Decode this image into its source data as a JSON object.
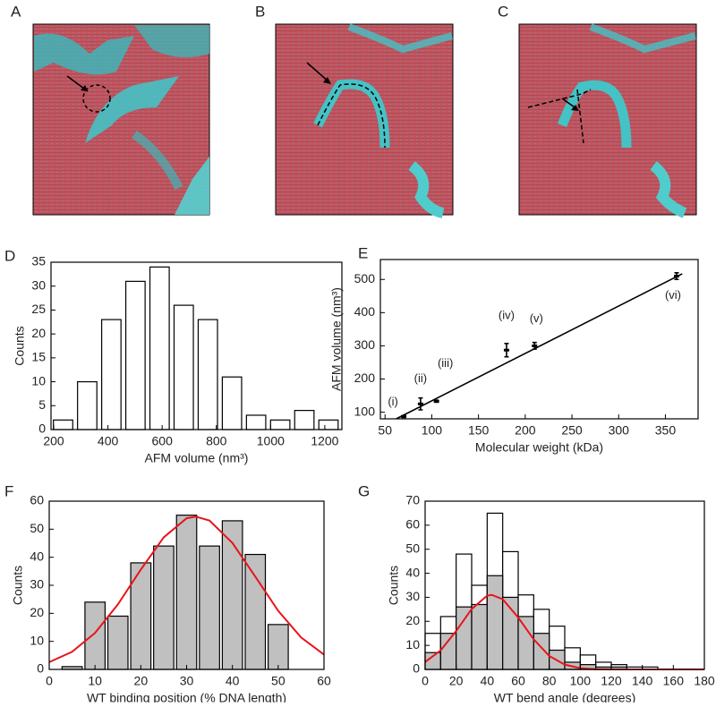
{
  "images": [
    {
      "label": "A"
    },
    {
      "label": "B"
    },
    {
      "label": "C"
    }
  ],
  "chart_data": [
    {
      "type": "histogram",
      "label": "D",
      "xlabel": "AFM volume (nm³)",
      "ylabel": "Counts",
      "bins": [
        190,
        279,
        368,
        457,
        546,
        635,
        724,
        813,
        902,
        991,
        1080,
        1169,
        1258
      ],
      "series": [
        {
          "color": "#ffffff",
          "values": [
            2,
            10,
            23,
            31,
            34,
            26,
            23,
            11,
            3,
            2,
            4,
            2
          ]
        }
      ],
      "xlim": [
        190,
        1263
      ],
      "xticks": [
        200,
        400,
        600,
        800,
        1000,
        1200
      ],
      "ylim": [
        0,
        35
      ],
      "yticks": [
        0,
        5,
        10,
        15,
        20,
        25,
        30,
        35
      ]
    },
    {
      "type": "scatter",
      "label": "E",
      "xlabel": "Molecular weight (kDa)",
      "ylabel": "AFM volume (nm³)",
      "x": [
        70,
        88,
        105,
        180,
        210,
        362
      ],
      "values": [
        87,
        125,
        133,
        287,
        300,
        510
      ],
      "errors": [
        3,
        18,
        3,
        20,
        10,
        10
      ],
      "point_labels": [
        "(i)",
        "(ii)",
        "(iii)",
        "(iv)",
        "(v)",
        "(vi)"
      ],
      "color": "#000000",
      "fit": {
        "x": [
          62,
          368
        ],
        "y": [
          80,
          517
        ],
        "color": "#000000"
      },
      "xlim": [
        45,
        385
      ],
      "xticks": [
        50,
        100,
        150,
        200,
        250,
        300,
        350
      ],
      "ylim": [
        80,
        560
      ],
      "yticks": [
        100,
        200,
        300,
        400,
        500
      ]
    },
    {
      "type": "histogram",
      "label": "F",
      "xlabel": "WT binding position (% DNA length)",
      "ylabel": "Counts",
      "bins": [
        2.5,
        7.5,
        12.5,
        17.5,
        22.5,
        27.5,
        32.5,
        37.5,
        42.5,
        47.5,
        52.5
      ],
      "series": [
        {
          "color": "#c0c0c0",
          "values": [
            1,
            24,
            19,
            38,
            44,
            55,
            44,
            53,
            41,
            16
          ]
        }
      ],
      "fit": {
        "color": "#e8141b",
        "x": [
          0,
          5,
          10,
          15,
          20,
          25,
          30,
          32,
          35,
          40,
          45,
          50,
          55,
          60
        ],
        "y": [
          2.6,
          6.3,
          13.0,
          23.2,
          35.6,
          47.1,
          53.9,
          54.5,
          53.1,
          45.1,
          33.1,
          20.9,
          11.4,
          5.3
        ]
      },
      "xlim": [
        0,
        60
      ],
      "xticks": [
        0,
        10,
        20,
        30,
        40,
        50,
        60
      ],
      "ylim": [
        0,
        60
      ],
      "yticks": [
        0,
        10,
        20,
        30,
        40,
        50,
        60
      ]
    },
    {
      "type": "histogram",
      "label": "G",
      "xlabel": "WT bend angle (degrees)",
      "ylabel": "Counts",
      "bins": [
        0,
        10,
        20,
        30,
        40,
        50,
        60,
        70,
        80,
        90,
        100,
        110,
        120,
        130,
        140,
        150
      ],
      "series": [
        {
          "color": "#ffffff",
          "values": [
            15,
            22,
            48,
            35,
            65,
            49,
            31,
            25,
            18,
            9,
            6,
            3,
            2,
            1,
            1
          ]
        },
        {
          "color": "#c0c0c0",
          "values": [
            7,
            15,
            26,
            27,
            39,
            30,
            22,
            15,
            8,
            3,
            2,
            1,
            1,
            0,
            0
          ]
        }
      ],
      "fit": {
        "color": "#e8141b",
        "x": [
          0,
          10,
          20,
          30,
          40,
          43,
          50,
          60,
          70,
          80,
          90,
          100,
          110,
          120,
          140,
          160,
          180
        ],
        "y": [
          3.1,
          7.9,
          16.0,
          25.1,
          30.7,
          31,
          29.2,
          21.6,
          12.5,
          5.6,
          2.0,
          0.5,
          0.1,
          0,
          0,
          0,
          0
        ]
      },
      "xlim": [
        0,
        180
      ],
      "xticks": [
        0,
        20,
        40,
        60,
        80,
        100,
        120,
        140,
        160,
        180
      ],
      "ylim": [
        0,
        70
      ],
      "yticks": [
        0,
        10,
        20,
        30,
        40,
        50,
        60,
        70
      ]
    }
  ]
}
